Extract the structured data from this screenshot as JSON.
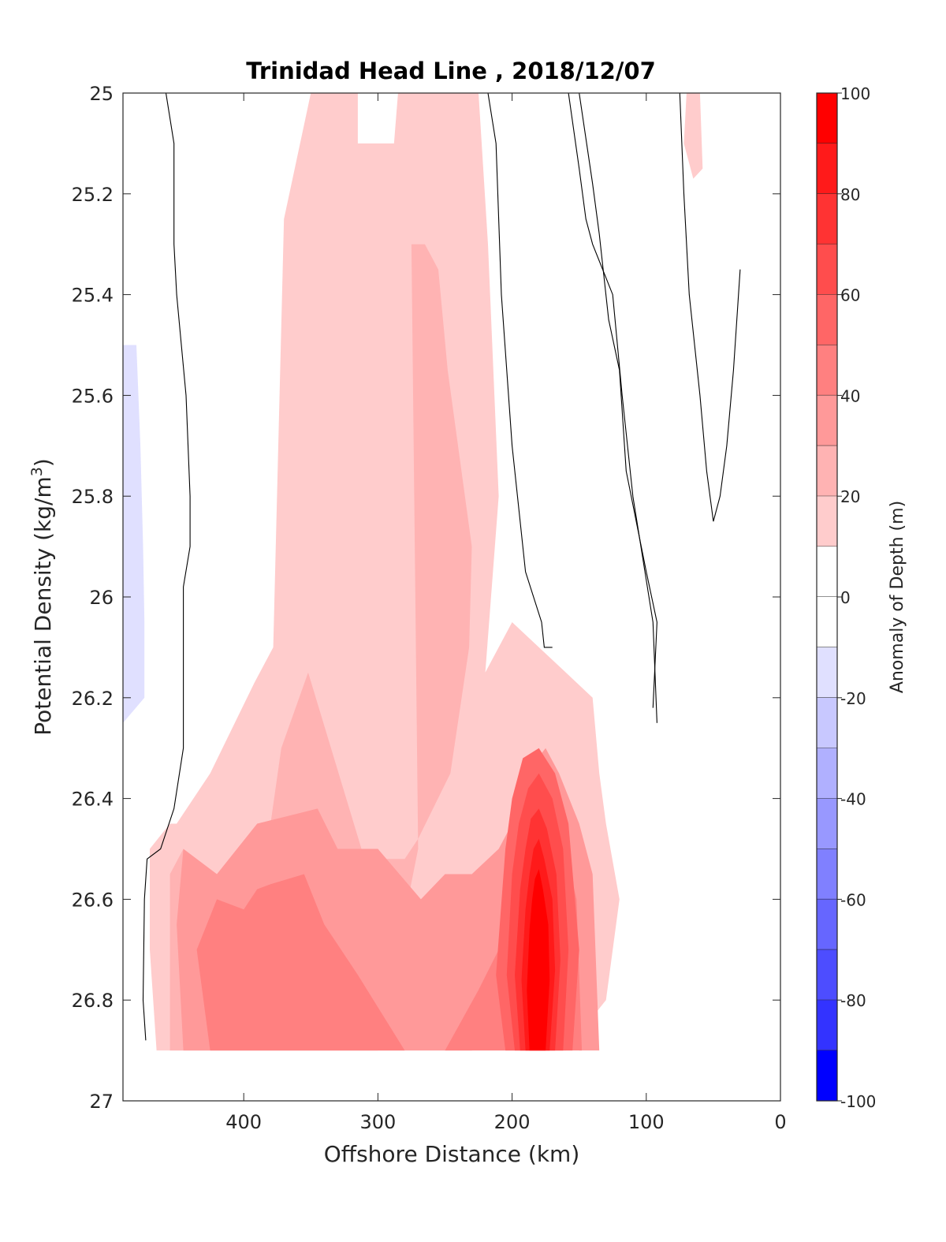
{
  "chart_data": {
    "type": "heatmap",
    "title": "Trinidad Head Line , 2018/12/07",
    "xlabel": "Offshore Distance (km)",
    "ylabel_main": "Potential Density (kg/m",
    "ylabel_sup": "3",
    "ylabel_tail": ")",
    "xlim": [
      490,
      0
    ],
    "x_reversed": true,
    "ylim": [
      25,
      27
    ],
    "y_reversed": true,
    "x_ticks": [
      400,
      300,
      200,
      100,
      0
    ],
    "x_tick_labels": [
      "400",
      "300",
      "200",
      "100",
      "0"
    ],
    "y_ticks": [
      25,
      25.2,
      25.4,
      25.6,
      25.8,
      26,
      26.2,
      26.4,
      26.6,
      26.8,
      27
    ],
    "y_tick_labels": [
      "25",
      "25.2",
      "25.4",
      "25.6",
      "25.8",
      "26",
      "26.2",
      "26.4",
      "26.6",
      "26.8",
      "27"
    ],
    "colorbar": {
      "label": "Anomaly of Depth (m)",
      "range": [
        -100,
        100
      ],
      "ticks": [
        100,
        80,
        60,
        40,
        20,
        0,
        -20,
        -40,
        -60,
        -80,
        -100
      ],
      "tick_labels": [
        "100",
        "80",
        "60",
        "40",
        "20",
        "0",
        "-20",
        "-40",
        "-60",
        "-80",
        "-100"
      ],
      "levels": [
        {
          "from": 90,
          "to": 100,
          "color": "#ff0000"
        },
        {
          "from": 80,
          "to": 90,
          "color": "#ff1a1a"
        },
        {
          "from": 70,
          "to": 80,
          "color": "#ff3333"
        },
        {
          "from": 60,
          "to": 70,
          "color": "#ff4d4d"
        },
        {
          "from": 50,
          "to": 60,
          "color": "#ff6666"
        },
        {
          "from": 40,
          "to": 50,
          "color": "#ff8080"
        },
        {
          "from": 30,
          "to": 40,
          "color": "#ff9999"
        },
        {
          "from": 20,
          "to": 30,
          "color": "#ffb3b3"
        },
        {
          "from": 10,
          "to": 20,
          "color": "#ffcccc"
        },
        {
          "from": 0,
          "to": 10,
          "color": "#ffffff"
        },
        {
          "from": -10,
          "to": 0,
          "color": "#ffffff"
        },
        {
          "from": -20,
          "to": -10,
          "color": "#e0e0ff"
        },
        {
          "from": -30,
          "to": -20,
          "color": "#c8c8ff"
        },
        {
          "from": -40,
          "to": -30,
          "color": "#b0b0ff"
        },
        {
          "from": -50,
          "to": -40,
          "color": "#9898ff"
        },
        {
          "from": -60,
          "to": -50,
          "color": "#8080ff"
        },
        {
          "from": -70,
          "to": -60,
          "color": "#6666ff"
        },
        {
          "from": -80,
          "to": -70,
          "color": "#4d4dff"
        },
        {
          "from": -90,
          "to": -80,
          "color": "#3333ff"
        },
        {
          "from": -100,
          "to": -90,
          "color": "#0000ff"
        }
      ]
    },
    "regions": [
      {
        "name": "offshore-negative",
        "level": -10,
        "x": [
          490,
          478,
          478,
          475,
          472,
          470,
          470,
          480,
          490
        ],
        "y": [
          25,
          25,
          25.5,
          25.8,
          26.05,
          26.2,
          26.35,
          26.42,
          26.42
        ]
      },
      {
        "name": "offshore-negative-core",
        "level": -20,
        "x": [
          490,
          480,
          477,
          475,
          474,
          474,
          490
        ],
        "y": [
          25.5,
          25.5,
          25.7,
          25.9,
          26.05,
          26.2,
          26.25
        ]
      },
      {
        "name": "upper-positive",
        "level": 10,
        "x": [
          350,
          315,
          315,
          288,
          285,
          278,
          225,
          218,
          210,
          220,
          200,
          160,
          140,
          135,
          130,
          120,
          130,
          160,
          200,
          250,
          300,
          350,
          380,
          420,
          445,
          465,
          470,
          470,
          455,
          450,
          425,
          392,
          378,
          370,
          350
        ],
        "y": [
          25,
          25,
          25.1,
          25.1,
          25,
          25,
          25,
          25.3,
          25.8,
          26.15,
          26.05,
          26.15,
          26.2,
          26.35,
          26.45,
          26.6,
          26.8,
          26.9,
          26.9,
          26.9,
          26.9,
          26.9,
          26.9,
          26.9,
          26.9,
          26.9,
          26.7,
          26.5,
          26.45,
          26.45,
          26.35,
          26.17,
          26.1,
          25.25,
          25
        ]
      },
      {
        "name": "mid-positive",
        "level": 20,
        "x": [
          275,
          265,
          255,
          248,
          230,
          232,
          246,
          270,
          280,
          310,
          352,
          372,
          380,
          420,
          445,
          455,
          455,
          440,
          412,
          380,
          350,
          300,
          270,
          275
        ],
        "y": [
          25.3,
          25.3,
          25.35,
          25.55,
          25.9,
          26.1,
          26.35,
          26.48,
          26.52,
          26.52,
          26.15,
          26.3,
          26.45,
          26.55,
          26.5,
          26.55,
          26.9,
          26.9,
          26.9,
          26.9,
          26.9,
          26.9,
          26.5,
          25.3
        ]
      },
      {
        "name": "lower-positive",
        "level": 30,
        "x": [
          330,
          300,
          268,
          250,
          230,
          210,
          200,
          190,
          175,
          165,
          150,
          140,
          135,
          150,
          165,
          190,
          230,
          270,
          320,
          370,
          420,
          445,
          450,
          445,
          420,
          390,
          345,
          330
        ],
        "y": [
          26.5,
          26.5,
          26.6,
          26.55,
          26.55,
          26.5,
          26.45,
          26.35,
          26.3,
          26.35,
          26.45,
          26.55,
          26.9,
          26.9,
          26.8,
          26.8,
          26.9,
          26.9,
          26.9,
          26.9,
          26.9,
          26.9,
          26.65,
          26.5,
          26.55,
          26.45,
          26.42,
          26.5
        ]
      },
      {
        "name": "lower-positive-2",
        "level": 40,
        "x": [
          380,
          355,
          340,
          315,
          280,
          250,
          225,
          210,
          195,
          175,
          165,
          152,
          148,
          155,
          190,
          230,
          260,
          320,
          360,
          400,
          425,
          435,
          420,
          400,
          390,
          380
        ],
        "y": [
          26.57,
          26.55,
          26.65,
          26.75,
          26.9,
          26.9,
          26.78,
          26.7,
          26.45,
          26.35,
          26.45,
          26.6,
          26.9,
          26.9,
          26.9,
          26.9,
          26.9,
          26.9,
          26.9,
          26.9,
          26.9,
          26.7,
          26.6,
          26.62,
          26.58,
          26.57
        ]
      },
      {
        "name": "core-50",
        "level": 50,
        "x": [
          192,
          180,
          168,
          158,
          150,
          155,
          205,
          212,
          205,
          200,
          192
        ],
        "y": [
          26.32,
          26.3,
          26.35,
          26.45,
          26.7,
          26.9,
          26.9,
          26.75,
          26.5,
          26.4,
          26.32
        ]
      },
      {
        "name": "core-60",
        "level": 60,
        "x": [
          188,
          180,
          170,
          162,
          158,
          162,
          198,
          204,
          200,
          195,
          188
        ],
        "y": [
          26.38,
          26.35,
          26.4,
          26.5,
          26.7,
          26.9,
          26.9,
          26.75,
          26.55,
          26.45,
          26.38
        ]
      },
      {
        "name": "core-70",
        "level": 70,
        "x": [
          186,
          180,
          174,
          167,
          164,
          168,
          194,
          198,
          194,
          190,
          186
        ],
        "y": [
          26.44,
          26.42,
          26.46,
          26.55,
          26.72,
          26.9,
          26.9,
          26.75,
          26.58,
          26.5,
          26.44
        ]
      },
      {
        "name": "core-80",
        "level": 80,
        "x": [
          184,
          180,
          176,
          170,
          168,
          172,
          190,
          193,
          190,
          187,
          184
        ],
        "y": [
          26.5,
          26.48,
          26.52,
          26.6,
          26.74,
          26.9,
          26.9,
          26.76,
          26.62,
          26.55,
          26.5
        ]
      },
      {
        "name": "core-90",
        "level": 90,
        "x": [
          183,
          180,
          177,
          173,
          172,
          175,
          187,
          189,
          187,
          185,
          183
        ],
        "y": [
          26.56,
          26.54,
          26.58,
          26.65,
          26.76,
          26.9,
          26.9,
          26.78,
          26.66,
          26.6,
          26.56
        ]
      },
      {
        "name": "inner-negative-1",
        "level": -10,
        "x": [
          210,
          205,
          192,
          188,
          193,
          205,
          210
        ],
        "y": [
          25.13,
          25.1,
          25.25,
          25.5,
          25.75,
          25.7,
          25.13
        ]
      },
      {
        "name": "inner-negative-2",
        "level": -10,
        "x": [
          110,
          100,
          95,
          92,
          100,
          110
        ],
        "y": [
          25,
          25,
          25.2,
          25.5,
          25.55,
          25
        ]
      },
      {
        "name": "inner-negative-3",
        "level": -10,
        "x": [
          40,
          30,
          25,
          22,
          35,
          40
        ],
        "y": [
          25.07,
          25.05,
          25.2,
          25.35,
          25.3,
          25.07
        ]
      },
      {
        "name": "small-positive",
        "level": 10,
        "x": [
          70,
          60,
          58,
          65,
          72,
          70
        ],
        "y": [
          25,
          25,
          25.15,
          25.17,
          25.1,
          25
        ]
      }
    ],
    "contour_zero": [
      {
        "x": [
          458,
          452,
          452,
          450,
          443,
          440,
          440,
          445,
          445,
          452,
          462,
          472,
          474,
          475,
          473
        ],
        "y": [
          25,
          25.1,
          25.3,
          25.4,
          25.6,
          25.8,
          25.9,
          25.98,
          26.3,
          26.42,
          26.5,
          26.52,
          26.6,
          26.8,
          26.88
        ]
      },
      {
        "x": [
          218,
          212,
          208,
          200,
          190,
          178,
          176,
          170
        ],
        "y": [
          25,
          25.1,
          25.4,
          25.7,
          25.95,
          26.05,
          26.1,
          26.1
        ]
      },
      {
        "x": [
          158,
          150,
          145,
          140,
          125,
          118,
          110,
          95,
          92
        ],
        "y": [
          25,
          25.15,
          25.25,
          25.3,
          25.4,
          25.6,
          25.8,
          26.05,
          26.25
        ]
      },
      {
        "x": [
          150,
          140,
          135,
          128,
          120,
          115,
          100,
          92,
          95
        ],
        "y": [
          25,
          25.18,
          25.28,
          25.45,
          25.55,
          25.75,
          25.95,
          26.05,
          26.22
        ]
      },
      {
        "x": [
          75,
          72,
          68,
          60,
          55,
          50,
          45,
          40,
          35,
          30
        ],
        "y": [
          25,
          25.2,
          25.4,
          25.6,
          25.75,
          25.85,
          25.8,
          25.7,
          25.55,
          25.35
        ]
      }
    ]
  }
}
